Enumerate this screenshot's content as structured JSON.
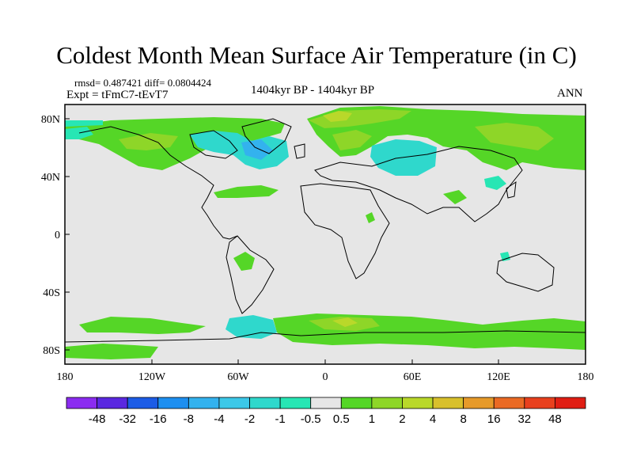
{
  "title": "Coldest Month Mean Surface Air Temperature (in C)",
  "rmsd_line": "rmsd= 0.487421 diff= 0.0804424",
  "expt_line": "Expt = tFmC7-tEvT7",
  "period": "1404kyr BP - 1404kyr BP",
  "season": "ANN",
  "lat_labels": [
    "80N",
    "40N",
    "0",
    "40S",
    "80S"
  ],
  "lon_labels": [
    "180",
    "120W",
    "60W",
    "0",
    "60E",
    "120E",
    "180"
  ],
  "colorbar": {
    "labels": [
      "-48",
      "-32",
      "-16",
      "-8",
      "-4",
      "-2",
      "-1",
      "-0.5",
      "0.5",
      "1",
      "2",
      "4",
      "8",
      "16",
      "32",
      "48"
    ],
    "colors": [
      "#8b2cf0",
      "#5a28e0",
      "#1c5ce6",
      "#1d8ff0",
      "#33b2ee",
      "#3cc8e8",
      "#2fd8cc",
      "#27e6b4",
      "#e6e6e6",
      "#55d627",
      "#8ed628",
      "#b9d82a",
      "#d8c02c",
      "#e69a2a",
      "#ea6a24",
      "#e8401e",
      "#e01e14"
    ]
  },
  "colors": {
    "background_field": "#e6e6e6",
    "coast": "#000000"
  }
}
